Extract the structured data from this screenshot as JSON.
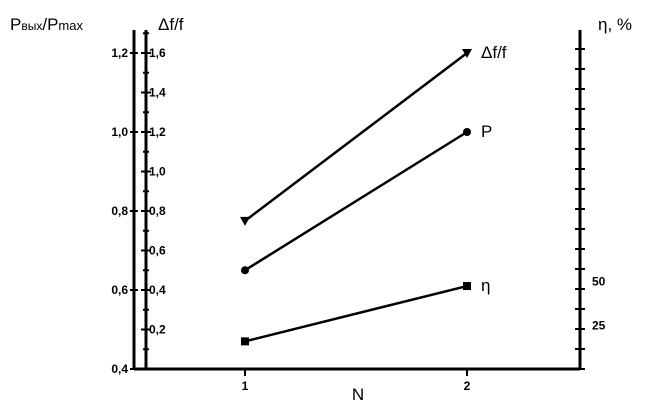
{
  "chart_data": {
    "type": "line",
    "x": [
      1,
      2
    ],
    "xlabel": "N",
    "xlim": [
      0.5,
      2.5
    ],
    "x_tick_labels": [
      "1",
      "2"
    ],
    "grid": false,
    "axes": {
      "left_outer": {
        "label_parts": [
          "P",
          "вых",
          "/P",
          "max"
        ],
        "range": [
          0.4,
          1.25
        ],
        "tick_labels": [
          "0,4",
          "0,6",
          "0,8",
          "1,0",
          "1,2"
        ]
      },
      "left_inner": {
        "label": "Δf/f",
        "range": [
          0,
          1.7
        ],
        "tick_labels": [
          "0,2",
          "0,4",
          "0,6",
          "0,8",
          "1,0",
          "1,2",
          "1,4",
          "1,6"
        ]
      },
      "right": {
        "label": "η, %",
        "tick_labels": [
          "25",
          "50"
        ]
      }
    },
    "series": [
      {
        "name": "Δf/f",
        "axis": "left_inner",
        "marker": "triangle-down",
        "values": [
          0.75,
          1.6
        ]
      },
      {
        "name": "P",
        "axis": "left_outer",
        "marker": "circle",
        "values": [
          0.65,
          1.0
        ]
      },
      {
        "name": "η",
        "axis": "left_inner",
        "marker": "square",
        "values": [
          0.14,
          0.42
        ]
      }
    ]
  }
}
